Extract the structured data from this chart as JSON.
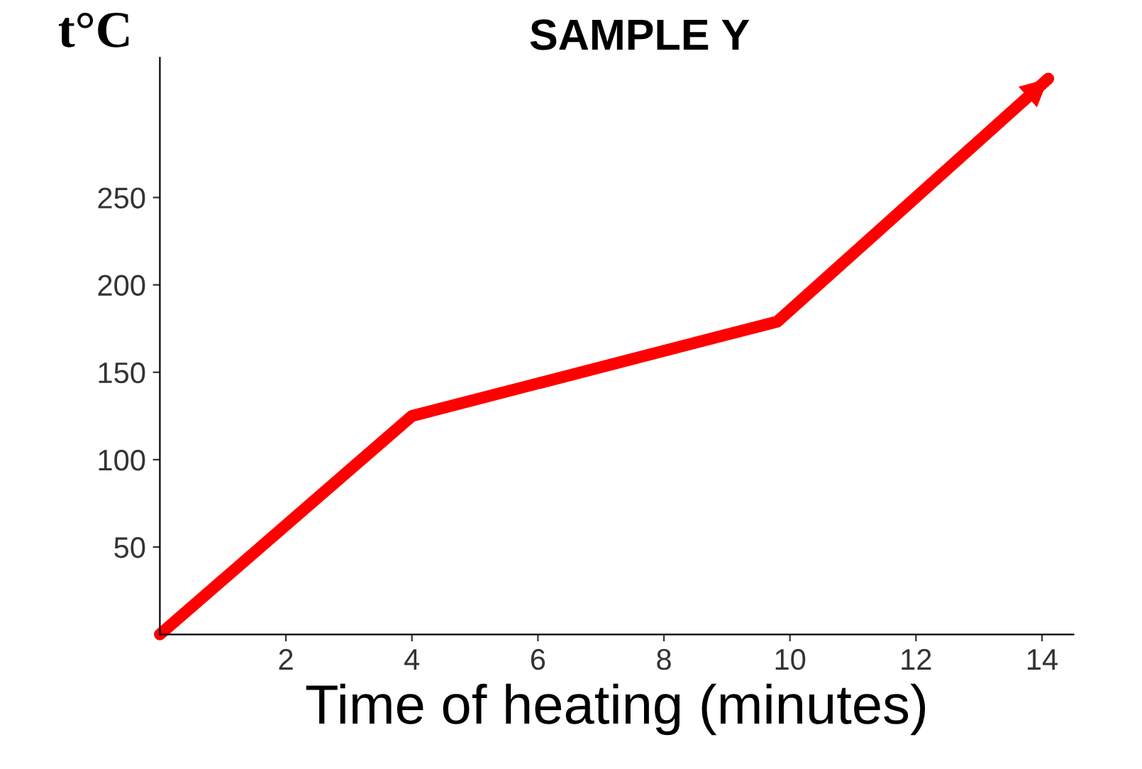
{
  "chart_data": {
    "type": "line",
    "title": "SAMPLE Y",
    "xlabel": "Time of heating (minutes)",
    "ylabel": "t°C",
    "x": [
      0,
      4,
      9.8,
      14.1
    ],
    "series": [
      {
        "color": "#ff0000",
        "values": [
          0,
          125,
          179,
          318
        ]
      }
    ],
    "xlim": [
      0,
      14.5
    ],
    "ylim": [
      0,
      330
    ],
    "xticks": [
      2,
      4,
      6,
      8,
      10,
      12,
      14
    ],
    "yticks": [
      50,
      100,
      150,
      200,
      250
    ],
    "grid": false,
    "legend": false,
    "marker": "none",
    "line_style": "solid"
  }
}
